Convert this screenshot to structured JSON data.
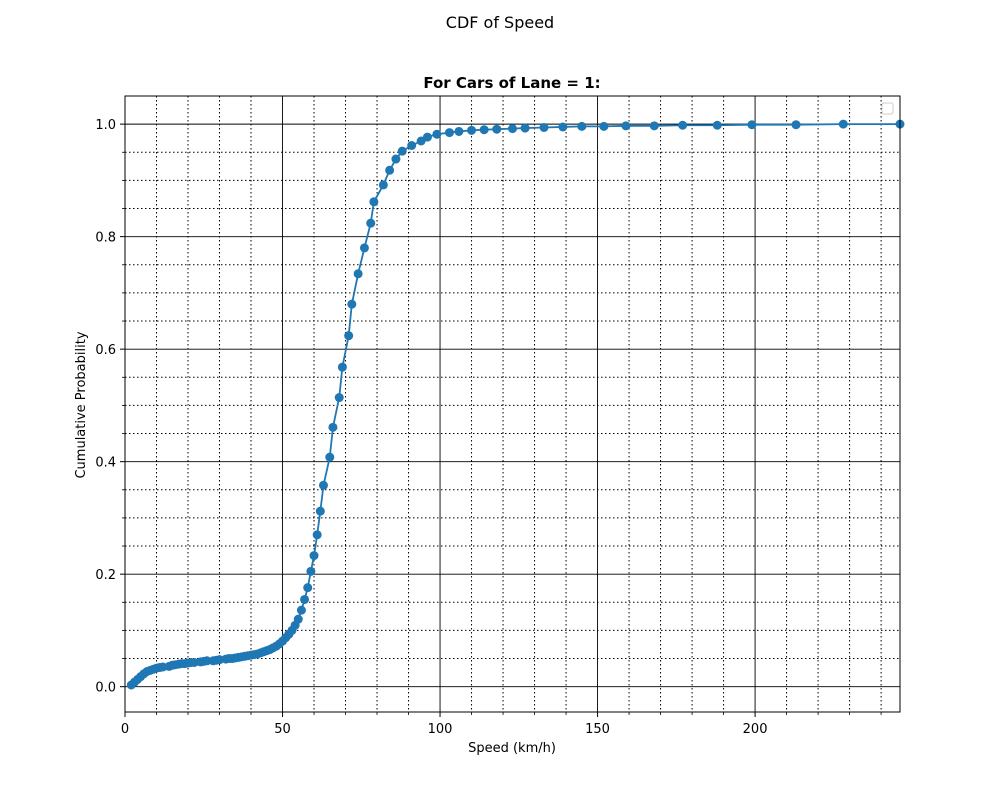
{
  "figure": {
    "suptitle": "CDF of Speed"
  },
  "chart_data": {
    "type": "line",
    "title": "For Cars of Lane = 1:",
    "xlabel": "Speed (km/h)",
    "ylabel": "Cumulative Probability",
    "xlim": [
      0,
      246
    ],
    "ylim": [
      -0.045,
      1.05
    ],
    "x_ticks": [
      0,
      50,
      100,
      150,
      200
    ],
    "x_tick_labels": [
      "0",
      "50",
      "100",
      "150",
      "200"
    ],
    "y_ticks": [
      0.0,
      0.2,
      0.4,
      0.6,
      0.8,
      1.0
    ],
    "y_tick_labels": [
      "0.0",
      "0.2",
      "0.4",
      "0.6",
      "0.8",
      "1.0"
    ],
    "x_minor_ticks": [
      10,
      20,
      30,
      40,
      60,
      70,
      80,
      90,
      110,
      120,
      130,
      140,
      160,
      170,
      180,
      190,
      210,
      220,
      230,
      240
    ],
    "y_minor_ticks": [
      0.05,
      0.1,
      0.15,
      0.25,
      0.3,
      0.35,
      0.45,
      0.5,
      0.55,
      0.65,
      0.7,
      0.75,
      0.85,
      0.9,
      0.95
    ],
    "grid": {
      "major": true,
      "major_style": "solid",
      "minor": true,
      "minor_style": "dotted"
    },
    "legend": {
      "placement": "upper right",
      "entries": []
    },
    "colors": {
      "series": "#1f77b4",
      "grid": "#000000"
    },
    "series": [
      {
        "x": [
          2,
          3,
          4,
          5,
          6,
          7,
          8,
          9,
          10,
          11,
          12,
          14,
          15,
          16,
          17,
          18,
          19,
          20,
          21,
          22,
          24,
          25,
          26,
          28,
          29,
          30,
          32,
          33,
          34,
          35,
          36,
          37,
          38,
          39,
          40,
          41,
          42,
          43,
          44,
          45,
          46,
          47,
          48,
          49,
          50,
          51,
          52,
          53,
          54,
          55,
          56,
          57,
          58,
          59,
          60,
          61,
          62,
          63,
          65,
          66,
          68,
          69,
          71,
          72,
          74,
          76,
          78,
          79,
          82,
          84,
          86,
          88,
          91,
          94,
          96,
          99,
          103,
          106,
          110,
          114,
          118,
          123,
          127,
          133,
          139,
          145,
          152,
          159,
          168,
          177,
          188,
          199,
          213,
          228,
          246
        ],
        "y": [
          0.003,
          0.008,
          0.013,
          0.018,
          0.023,
          0.027,
          0.029,
          0.031,
          0.033,
          0.034,
          0.035,
          0.036,
          0.038,
          0.039,
          0.04,
          0.041,
          0.041,
          0.042,
          0.043,
          0.043,
          0.044,
          0.045,
          0.046,
          0.046,
          0.047,
          0.048,
          0.049,
          0.05,
          0.05,
          0.051,
          0.052,
          0.053,
          0.054,
          0.055,
          0.056,
          0.057,
          0.058,
          0.06,
          0.062,
          0.064,
          0.066,
          0.069,
          0.072,
          0.076,
          0.081,
          0.087,
          0.093,
          0.1,
          0.109,
          0.12,
          0.136,
          0.155,
          0.176,
          0.205,
          0.233,
          0.27,
          0.312,
          0.358,
          0.408,
          0.461,
          0.514,
          0.568,
          0.624,
          0.68,
          0.734,
          0.78,
          0.824,
          0.862,
          0.892,
          0.918,
          0.938,
          0.952,
          0.962,
          0.97,
          0.977,
          0.982,
          0.985,
          0.987,
          0.989,
          0.99,
          0.991,
          0.992,
          0.993,
          0.994,
          0.995,
          0.996,
          0.996,
          0.997,
          0.997,
          0.998,
          0.998,
          0.999,
          0.999,
          1.0,
          1.0
        ]
      }
    ]
  }
}
